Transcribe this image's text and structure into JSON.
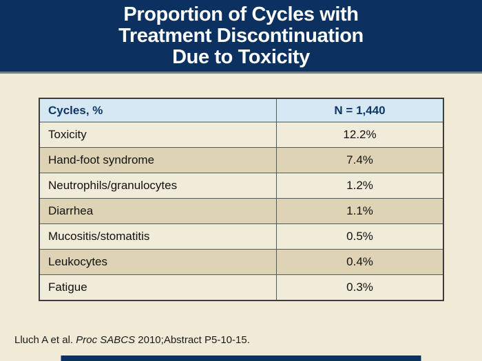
{
  "header": {
    "title_lines": [
      "Proportion of Cycles with",
      "Treatment Discontinuation",
      "Due to Toxicity"
    ]
  },
  "chart_data": {
    "type": "table",
    "title": "Proportion of Cycles with Treatment Discontinuation Due to Toxicity",
    "columns": [
      "Cycles, %",
      "N = 1,440"
    ],
    "rows": [
      [
        "Toxicity",
        "12.2%"
      ],
      [
        "Hand-foot syndrome",
        "7.4%"
      ],
      [
        "Neutrophils/granulocytes",
        "1.2%"
      ],
      [
        "Diarrhea",
        "1.1%"
      ],
      [
        "Mucositis/stomatitis",
        "0.5%"
      ],
      [
        "Leukocytes",
        "0.4%"
      ],
      [
        "Fatigue",
        "0.3%"
      ]
    ]
  },
  "footer": {
    "citation_prefix": "Lluch A et al. ",
    "citation_journal": "Proc SABCS",
    "citation_suffix": " 2010;Abstract P5-10-15."
  },
  "colors": {
    "band_navy": "#0b3161",
    "slide_cream": "#f0ead6",
    "header_blue": "#d6e8f3",
    "row_light": "#f1ecda",
    "row_tan": "#ded3b4",
    "header_text_navy": "#0e3767",
    "divider_gray": "#6f7c87"
  }
}
